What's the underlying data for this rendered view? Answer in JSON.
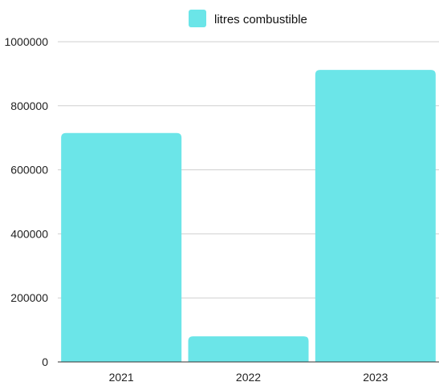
{
  "chart_data": {
    "type": "bar",
    "categories": [
      "2021",
      "2022",
      "2023"
    ],
    "series": [
      {
        "name": "litres combustible",
        "values": [
          715000,
          80000,
          912000
        ],
        "color": "#6BE5E8"
      }
    ],
    "ylim": [
      0,
      1000000
    ],
    "y_ticks": [
      0,
      200000,
      400000,
      600000,
      800000,
      1000000
    ],
    "grid": true,
    "legend_position": "top-center"
  }
}
